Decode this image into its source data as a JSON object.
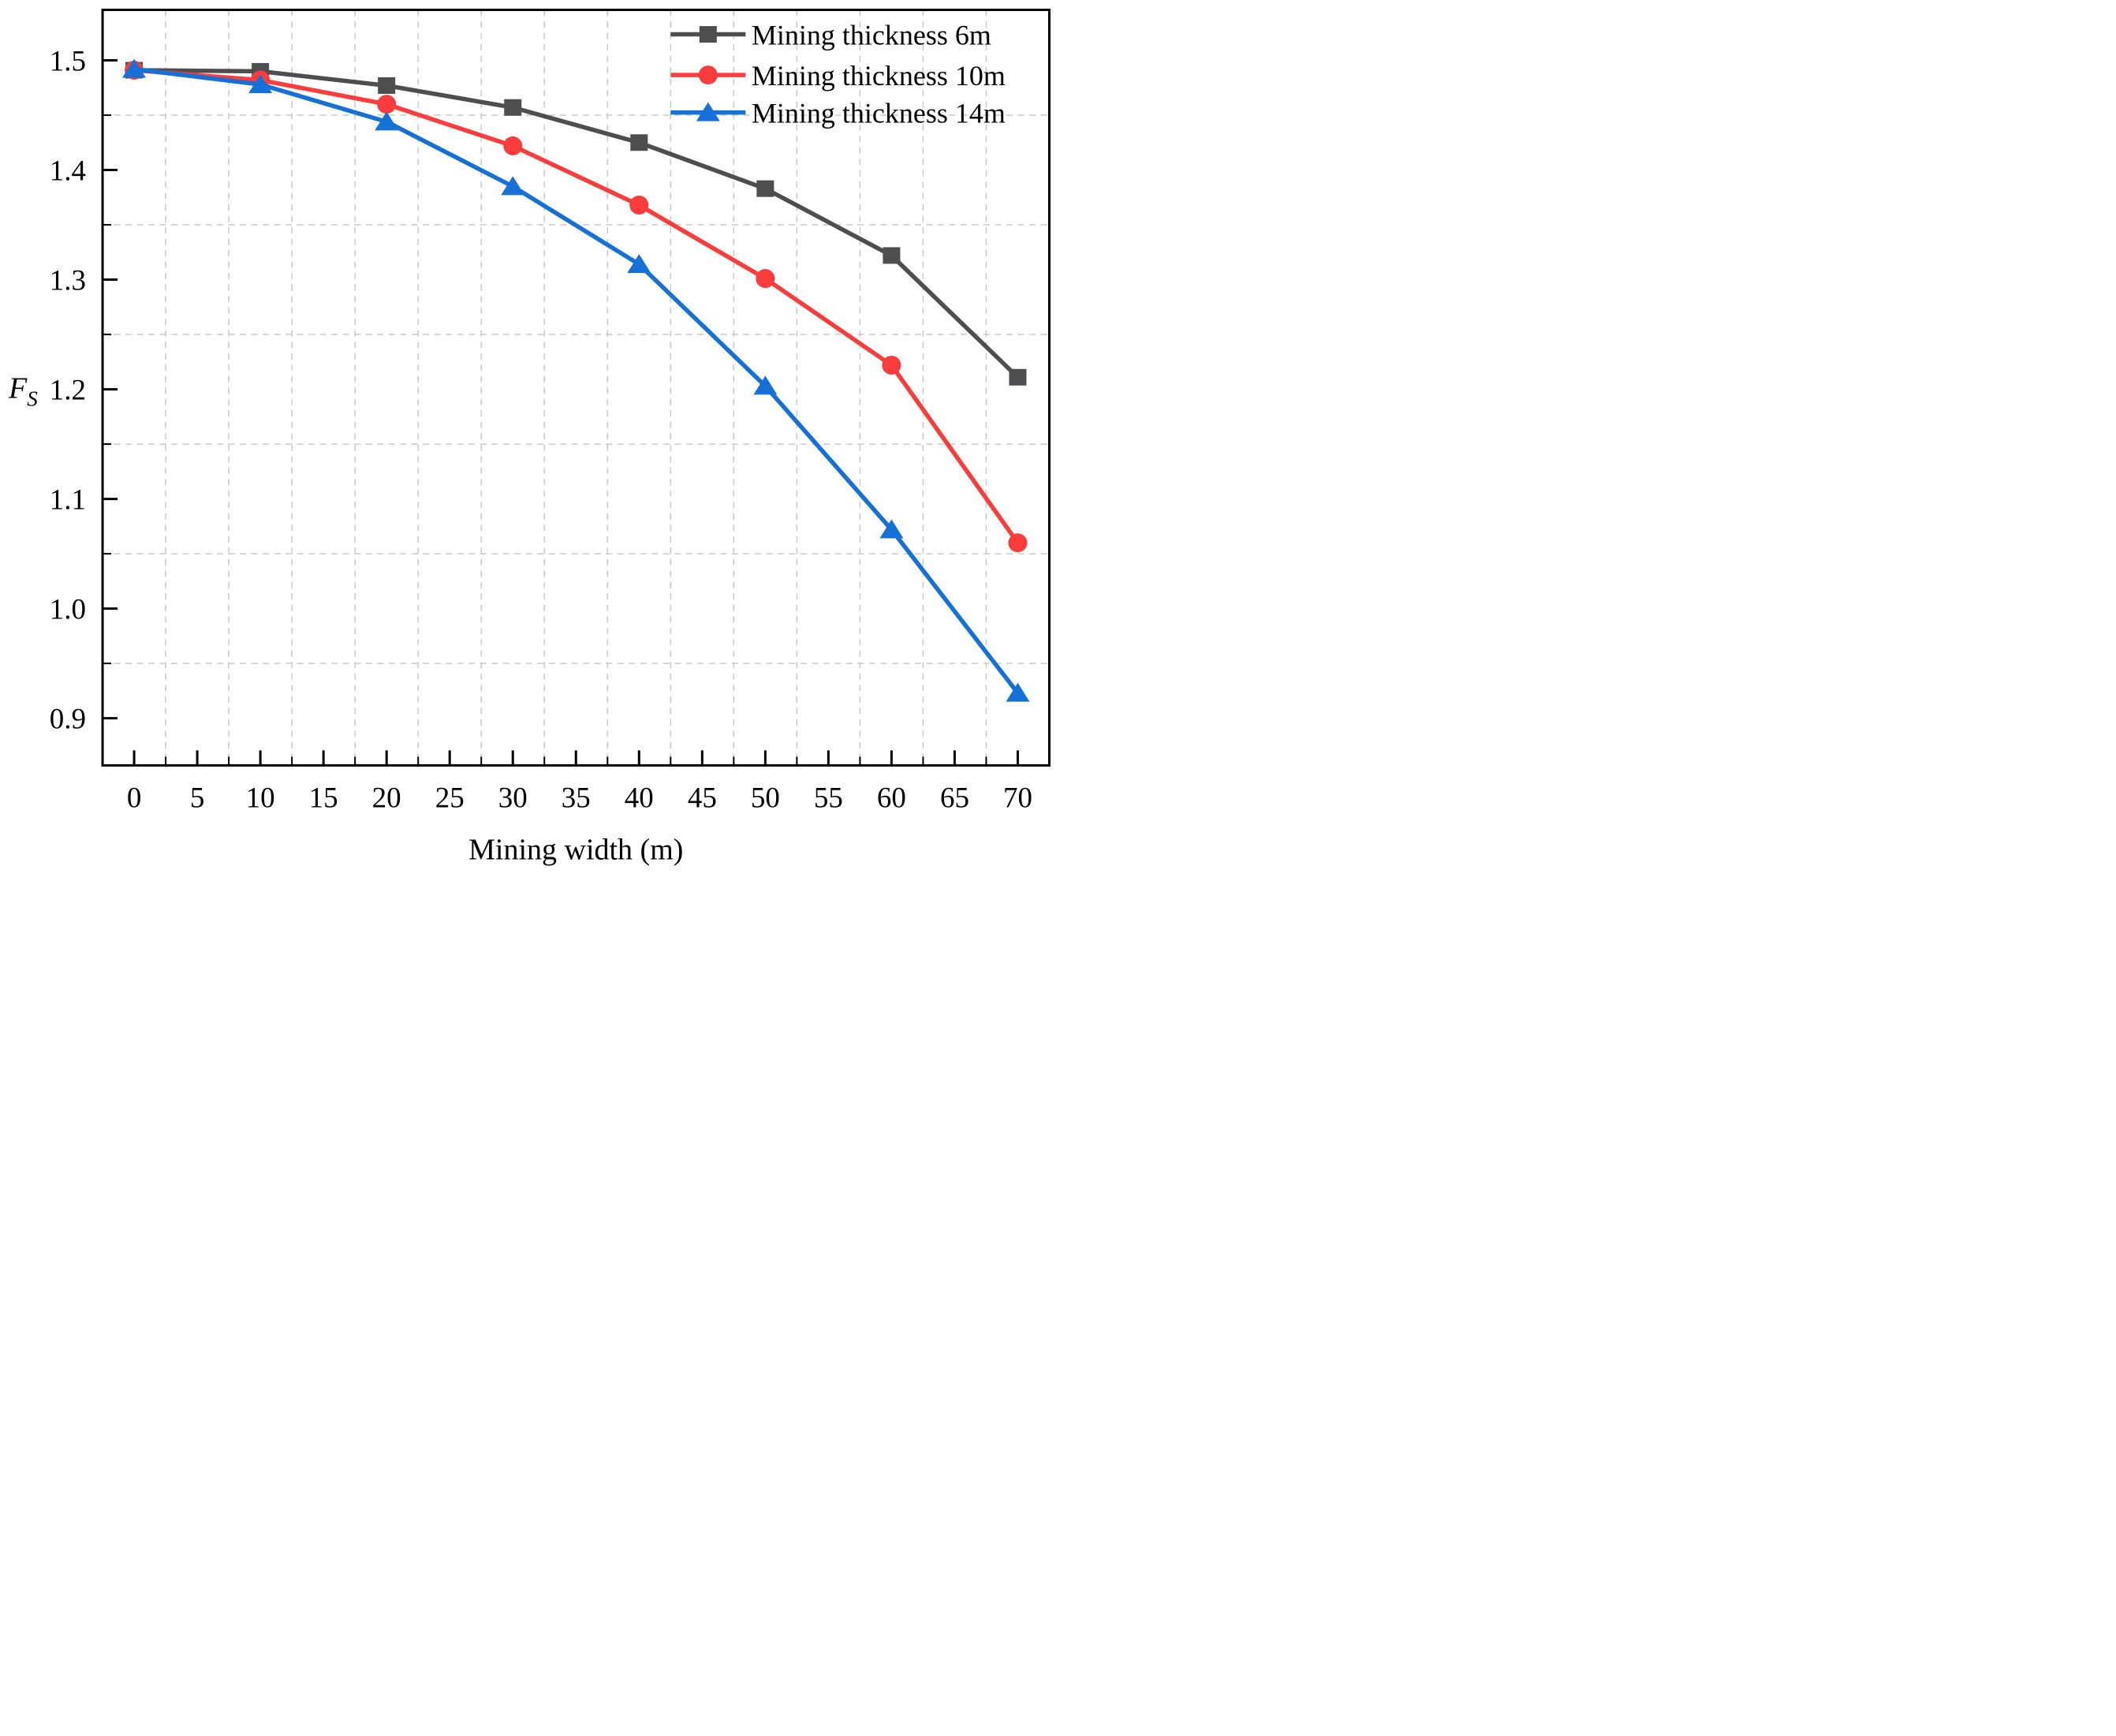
{
  "chart_data": {
    "type": "line",
    "title": "",
    "xlabel": "Mining width (m)",
    "ylabel": {
      "main": "F",
      "subscript": "S"
    },
    "x": [
      0,
      10,
      20,
      30,
      40,
      50,
      60,
      70
    ],
    "series": [
      {
        "name": "Mining thickness 6m",
        "color": "#4E4E50",
        "marker": "square",
        "values": [
          1.491,
          1.49,
          1.477,
          1.457,
          1.425,
          1.383,
          1.322,
          1.211
        ]
      },
      {
        "name": "Mining thickness 10m",
        "color": "#FA3C3C",
        "marker": "circle",
        "values": [
          1.491,
          1.482,
          1.46,
          1.422,
          1.368,
          1.301,
          1.222,
          1.06
        ]
      },
      {
        "name": "Mining thickness 14m",
        "color": "#1571D8",
        "marker": "triangle",
        "values": [
          1.492,
          1.478,
          1.444,
          1.385,
          1.314,
          1.203,
          1.072,
          0.923
        ]
      }
    ],
    "x_ticks": [
      0,
      5,
      10,
      15,
      20,
      25,
      30,
      35,
      40,
      45,
      50,
      55,
      60,
      65,
      70
    ],
    "x_minor_ticks": [
      2.5,
      7.5,
      12.5,
      17.5,
      22.5,
      27.5,
      32.5,
      37.5,
      42.5,
      47.5,
      52.5,
      57.5,
      62.5,
      67.5
    ],
    "y_ticks": [
      {
        "v": 1.5,
        "label": "1.5"
      },
      {
        "v": 1.4,
        "label": "1.4"
      },
      {
        "v": 1.3,
        "label": "1.3"
      },
      {
        "v": 1.2,
        "label": "1.2"
      },
      {
        "v": 1.1,
        "label": "1.1"
      },
      {
        "v": 1.0,
        "label": "1.0"
      },
      {
        "v": 0.9,
        "label": "0.9"
      }
    ],
    "y_minor_ticks": [
      1.45,
      1.35,
      1.25,
      1.15,
      1.05,
      0.95
    ],
    "xlim": [
      -2.5,
      72.5
    ],
    "ylim": [
      0.857,
      1.546
    ],
    "grid": "dashed gray lines at minor tick positions only, both axes",
    "legend_position": "top-right inside plot",
    "colors": {
      "grid": "#c9c9c9",
      "axis": "#000000",
      "text": "#000000",
      "background": "#ffffff"
    }
  }
}
